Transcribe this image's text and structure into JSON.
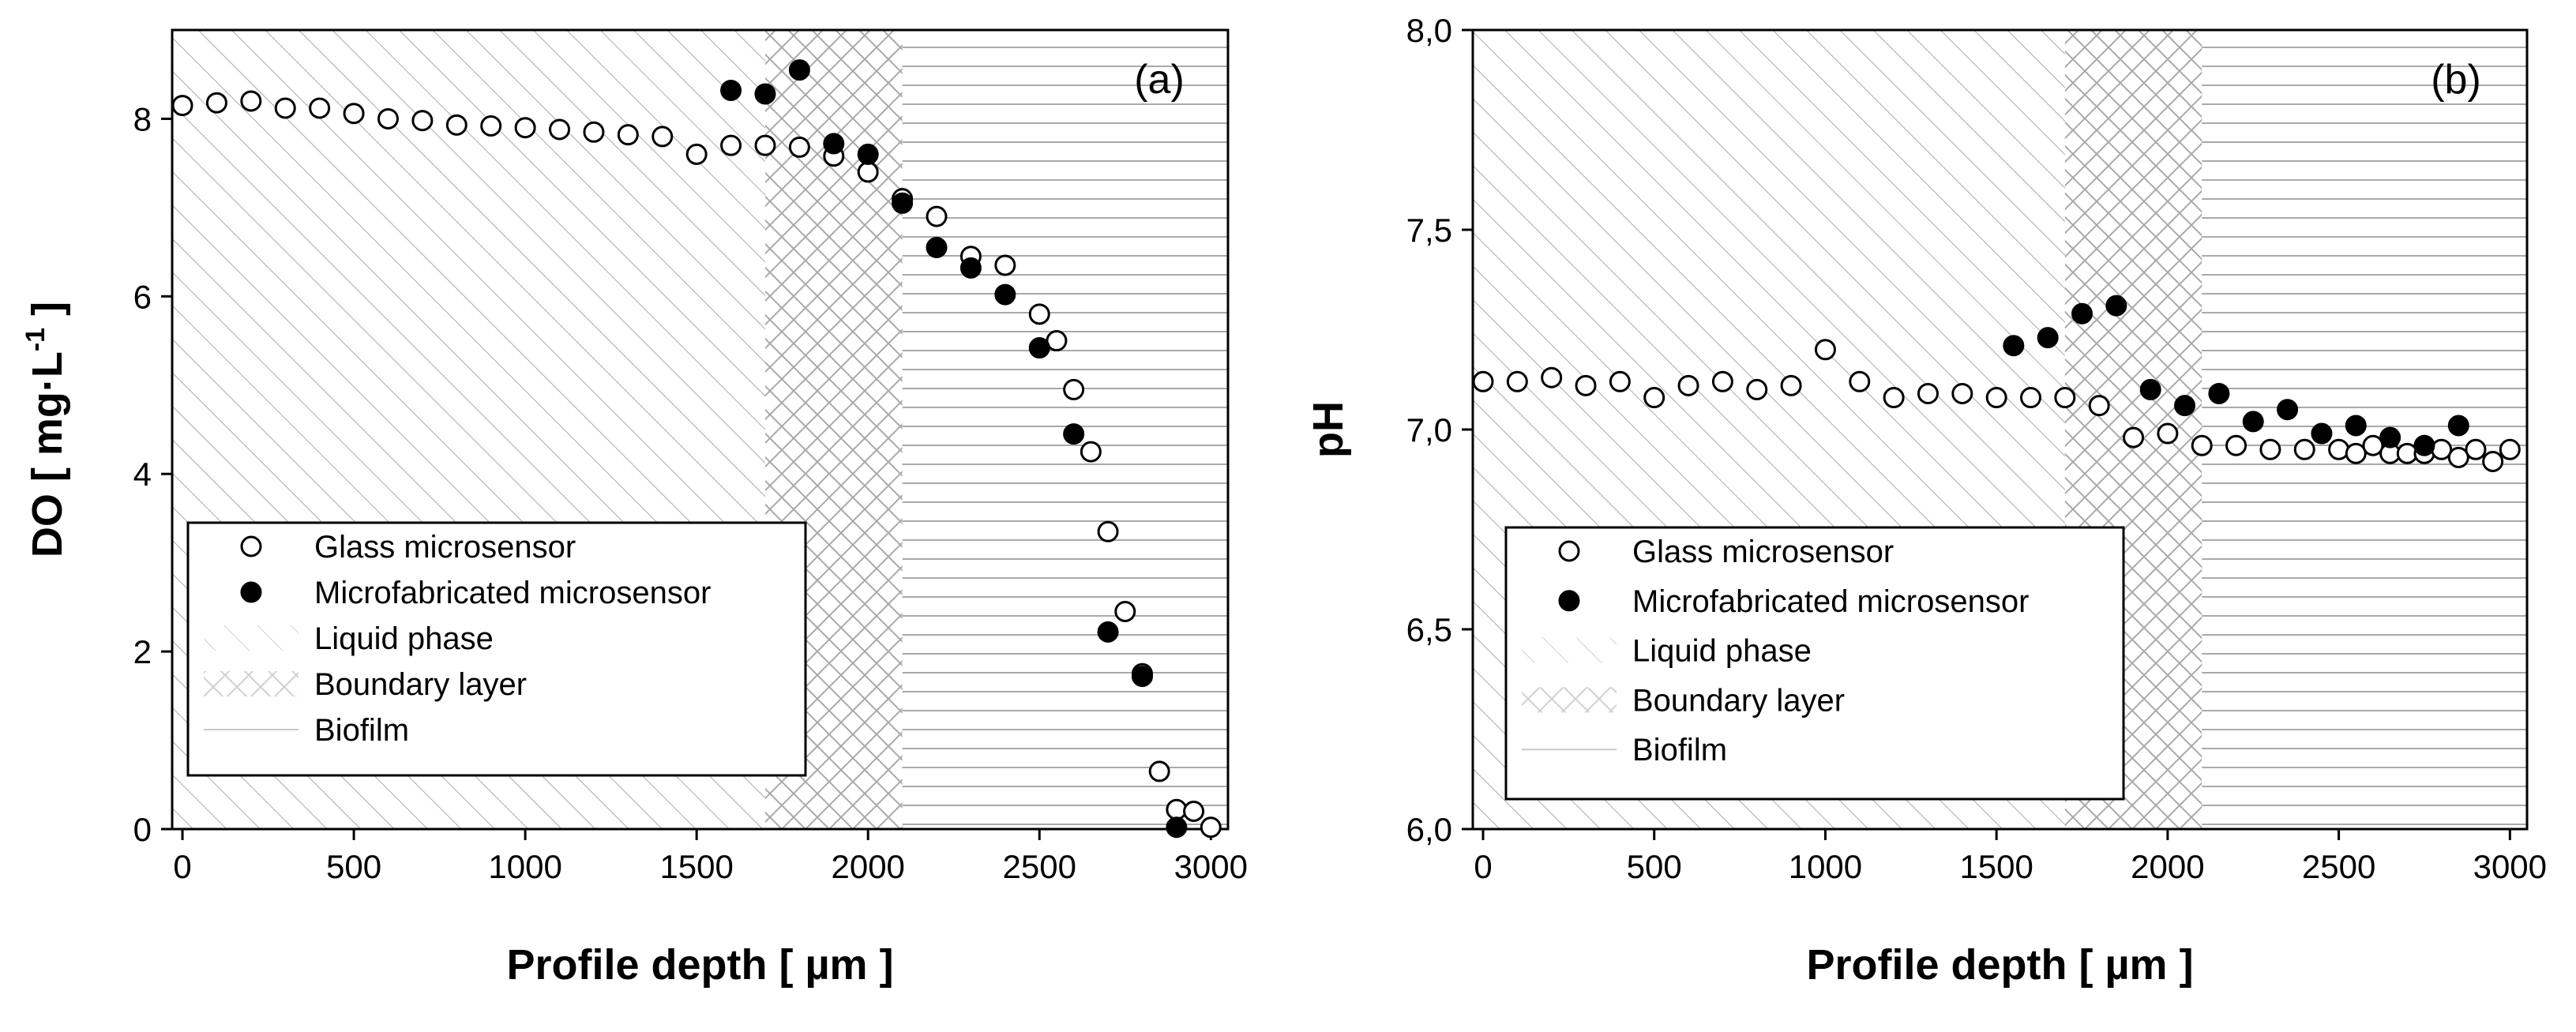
{
  "chart_data": [
    {
      "panel": "(a)",
      "type": "scatter",
      "xlabel": "Profile depth [ µm ]",
      "ylabel": "DO [ mg·L",
      "ylabel_sup": "-1",
      "ylabel_end": " ]",
      "xlim": [
        -30,
        3050
      ],
      "ylim": [
        0,
        9
      ],
      "xticks": [
        0,
        500,
        1000,
        1500,
        2000,
        2500,
        3000
      ],
      "xtick_labels": [
        "0",
        "500",
        "1000",
        "1500",
        "2000",
        "2500",
        "3000"
      ],
      "yticks": [
        0,
        2,
        4,
        6,
        8
      ],
      "ytick_labels": [
        "0",
        "2",
        "4",
        "6",
        "8"
      ],
      "regions": [
        {
          "name": "Liquid phase",
          "from": -30,
          "to": 1700
        },
        {
          "name": "Boundary layer",
          "from": 1700,
          "to": 2100
        },
        {
          "name": "Biofilm",
          "from": 2100,
          "to": 3050
        }
      ],
      "series": [
        {
          "name": "Glass microsensor",
          "x": [
            0,
            100,
            200,
            300,
            400,
            500,
            600,
            700,
            800,
            900,
            1000,
            1100,
            1200,
            1300,
            1400,
            1500,
            1600,
            1700,
            1800,
            1900,
            2000,
            2100,
            2200,
            2300,
            2400,
            2500,
            2550,
            2600,
            2650,
            2700,
            2750,
            2800,
            2850,
            2900,
            2950,
            3000
          ],
          "y": [
            8.15,
            8.18,
            8.2,
            8.12,
            8.12,
            8.06,
            8.0,
            7.98,
            7.93,
            7.92,
            7.9,
            7.88,
            7.85,
            7.82,
            7.8,
            7.6,
            7.7,
            7.7,
            7.68,
            7.58,
            7.4,
            7.1,
            6.9,
            6.45,
            6.35,
            5.8,
            5.5,
            4.95,
            4.25,
            3.35,
            2.45,
            1.75,
            0.65,
            0.22,
            0.2,
            0.02
          ]
        },
        {
          "name": "Microfabricated microsensor",
          "x": [
            1600,
            1700,
            1800,
            1900,
            2000,
            2100,
            2200,
            2300,
            2400,
            2500,
            2600,
            2700,
            2800,
            2900
          ],
          "y": [
            8.32,
            8.28,
            8.55,
            7.72,
            7.6,
            7.05,
            6.55,
            6.32,
            6.02,
            5.42,
            4.45,
            2.22,
            1.72,
            0.02
          ]
        }
      ],
      "legend": [
        "Glass microsensor",
        "Microfabricated microsensor",
        "Liquid phase",
        "Boundary layer",
        "Biofilm"
      ]
    },
    {
      "panel": "(b)",
      "type": "scatter",
      "xlabel": "Profile depth [ µm ]",
      "ylabel": "pH",
      "xlim": [
        -30,
        3050
      ],
      "ylim": [
        6.0,
        8.0
      ],
      "xticks": [
        0,
        500,
        1000,
        1500,
        2000,
        2500,
        3000
      ],
      "xtick_labels": [
        "0",
        "500",
        "1000",
        "1500",
        "2000",
        "2500",
        "3000"
      ],
      "yticks": [
        6.0,
        6.5,
        7.0,
        7.5,
        8.0
      ],
      "ytick_labels": [
        "6,0",
        "6,5",
        "7,0",
        "7,5",
        "8,0"
      ],
      "regions": [
        {
          "name": "Liquid phase",
          "from": -30,
          "to": 1700
        },
        {
          "name": "Boundary layer",
          "from": 1700,
          "to": 2100
        },
        {
          "name": "Biofilm",
          "from": 2100,
          "to": 3050
        }
      ],
      "series": [
        {
          "name": "Glass microsensor",
          "x": [
            0,
            100,
            200,
            300,
            400,
            500,
            600,
            700,
            800,
            900,
            1000,
            1100,
            1200,
            1300,
            1400,
            1500,
            1600,
            1700,
            1800,
            1900,
            2000,
            2100,
            2200,
            2300,
            2400,
            2500,
            2550,
            2600,
            2650,
            2700,
            2750,
            2800,
            2850,
            2900,
            2950,
            3000
          ],
          "y": [
            7.12,
            7.12,
            7.13,
            7.11,
            7.12,
            7.08,
            7.11,
            7.12,
            7.1,
            7.11,
            7.2,
            7.12,
            7.08,
            7.09,
            7.09,
            7.08,
            7.08,
            7.08,
            7.06,
            6.98,
            6.99,
            6.96,
            6.96,
            6.95,
            6.95,
            6.95,
            6.94,
            6.96,
            6.94,
            6.94,
            6.94,
            6.95,
            6.93,
            6.95,
            6.92,
            6.95
          ]
        },
        {
          "name": "Microfabricated microsensor",
          "x": [
            1550,
            1650,
            1750,
            1850,
            1950,
            2050,
            2150,
            2250,
            2350,
            2450,
            2550,
            2650,
            2750,
            2850
          ],
          "y": [
            7.21,
            7.23,
            7.29,
            7.31,
            7.1,
            7.06,
            7.09,
            7.02,
            7.05,
            6.99,
            7.01,
            6.98,
            6.96,
            7.01
          ]
        }
      ],
      "legend": [
        "Glass microsensor",
        "Microfabricated microsensor",
        "Liquid phase",
        "Boundary layer",
        "Biofilm"
      ]
    }
  ]
}
